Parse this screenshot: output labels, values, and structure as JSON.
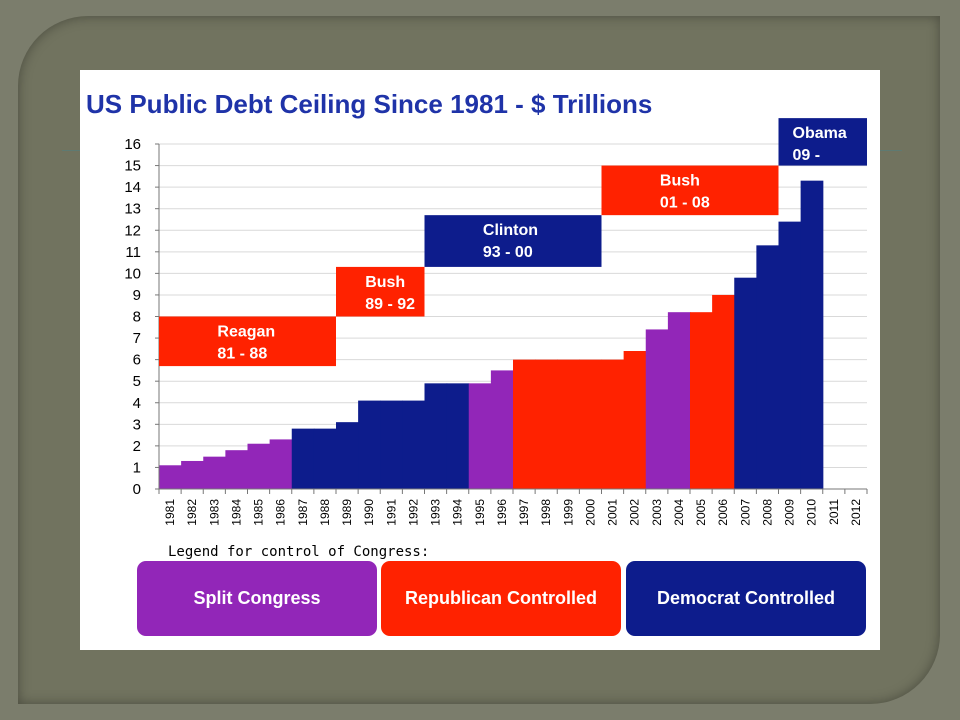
{
  "colors": {
    "split": "#9226b8",
    "republican": "#ff2200",
    "democrat": "#0d1c8c",
    "title": "#1f33a8"
  },
  "chart_data": {
    "type": "bar",
    "title": "US Public Debt Ceiling Since 1981 - $ Trillions",
    "xlabel": "",
    "ylabel": "",
    "ylim": [
      0,
      16
    ],
    "yticks": [
      0,
      1,
      2,
      3,
      4,
      5,
      6,
      7,
      8,
      9,
      10,
      11,
      12,
      13,
      14,
      15,
      16
    ],
    "grid": true,
    "categories": [
      "1981",
      "1982",
      "1983",
      "1984",
      "1985",
      "1986",
      "1987",
      "1988",
      "1989",
      "1990",
      "1991",
      "1992",
      "1993",
      "1994",
      "1995",
      "1996",
      "1997",
      "1998",
      "1999",
      "2000",
      "2001",
      "2002",
      "2003",
      "2004",
      "2005",
      "2006",
      "2007",
      "2008",
      "2009",
      "2010",
      "2011",
      "2012"
    ],
    "values": [
      1.1,
      1.3,
      1.5,
      1.8,
      2.1,
      2.3,
      2.8,
      2.8,
      3.1,
      4.1,
      4.1,
      4.1,
      4.9,
      4.9,
      4.9,
      5.5,
      6.0,
      6.0,
      6.0,
      6.0,
      6.0,
      6.4,
      7.4,
      8.2,
      8.2,
      9.0,
      9.8,
      11.3,
      12.4,
      14.3,
      null,
      null
    ],
    "congress_control": [
      "split",
      "split",
      "split",
      "split",
      "split",
      "split",
      "democrat",
      "democrat",
      "democrat",
      "democrat",
      "democrat",
      "democrat",
      "democrat",
      "democrat",
      "split",
      "split",
      "republican",
      "republican",
      "republican",
      "republican",
      "republican",
      "republican",
      "split",
      "split",
      "republican",
      "republican",
      "democrat",
      "democrat",
      "democrat",
      "democrat",
      "",
      ""
    ],
    "presidencies": [
      {
        "name": "Reagan",
        "years": "81 - 88",
        "party": "republican",
        "start": "1981",
        "end": "1988",
        "y_range": [
          5.7,
          8.0
        ]
      },
      {
        "name": "Bush",
        "years": "89 - 92",
        "party": "republican",
        "start": "1989",
        "end": "1992",
        "y_range": [
          8.0,
          10.3
        ]
      },
      {
        "name": "Clinton",
        "years": "93 - 00",
        "party": "democrat",
        "start": "1993",
        "end": "2000",
        "y_range": [
          10.3,
          12.7
        ]
      },
      {
        "name": "Bush",
        "years": "01 - 08",
        "party": "republican",
        "start": "2001",
        "end": "2008",
        "y_range": [
          12.7,
          15.0
        ]
      },
      {
        "name": "Obama",
        "years": "09 -",
        "party": "democrat",
        "start": "2009",
        "end": "2012",
        "y_range": [
          15.0,
          17.2
        ]
      }
    ]
  },
  "legend": {
    "caption": "Legend for control of Congress:",
    "items": [
      {
        "key": "split",
        "label": "Split Congress"
      },
      {
        "key": "republican",
        "label": "Republican Controlled"
      },
      {
        "key": "democrat",
        "label": "Democrat Controlled"
      }
    ]
  }
}
